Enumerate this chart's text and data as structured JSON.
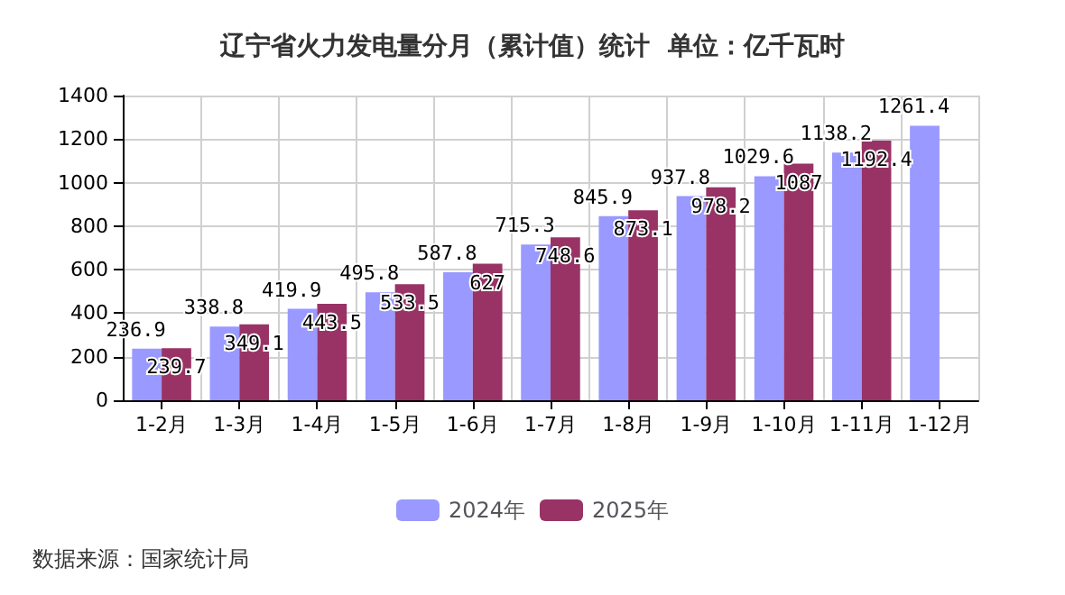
{
  "chart_data": {
    "type": "bar",
    "title": "辽宁省火力发电量分月（累计值）统计  单位：亿千瓦时",
    "categories": [
      "1-2月",
      "1-3月",
      "1-4月",
      "1-5月",
      "1-6月",
      "1-7月",
      "1-8月",
      "1-9月",
      "1-10月",
      "1-11月",
      "1-12月"
    ],
    "series": [
      {
        "name": "2024年",
        "color": "#9999ff",
        "values": [
          236.9,
          338.8,
          419.9,
          495.8,
          587.8,
          715.3,
          845.9,
          937.8,
          1029.6,
          1138.2,
          1261.4
        ]
      },
      {
        "name": "2025年",
        "color": "#993366",
        "values": [
          239.7,
          349.1,
          443.5,
          533.5,
          627,
          748.6,
          873.1,
          978.2,
          1087,
          1192.4,
          null
        ]
      }
    ],
    "ylim": [
      0,
      1400
    ],
    "yticks": [
      0,
      200,
      400,
      600,
      800,
      1000,
      1200,
      1400
    ],
    "grid": true,
    "legend": "bottom",
    "data_labels": true,
    "annotations": [
      "数据来源：国家统计局"
    ]
  }
}
